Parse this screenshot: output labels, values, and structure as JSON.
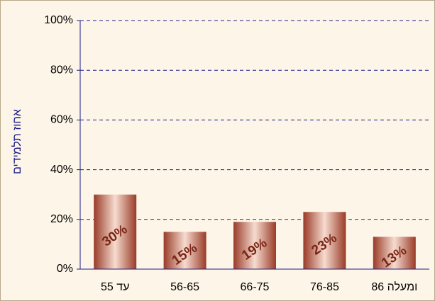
{
  "chart_data": {
    "type": "bar",
    "y_label": "אחוז תלמידים",
    "categories": [
      "עד 55",
      "56-65",
      "66-75",
      "76-85",
      "ומעלה 86"
    ],
    "values": [
      30,
      15,
      19,
      23,
      13
    ],
    "value_labels": [
      "30%",
      "15%",
      "19%",
      "23%",
      "13%"
    ],
    "color": "#9a3b28",
    "ylim": [
      0,
      100
    ],
    "yticks": [
      {
        "value": 0,
        "label": "0%"
      },
      {
        "value": 20,
        "label": "20%"
      },
      {
        "value": 40,
        "label": "40%"
      },
      {
        "value": 60,
        "label": "60%"
      },
      {
        "value": 80,
        "label": "80%"
      },
      {
        "value": 100,
        "label": "100%"
      }
    ],
    "grid": true
  }
}
